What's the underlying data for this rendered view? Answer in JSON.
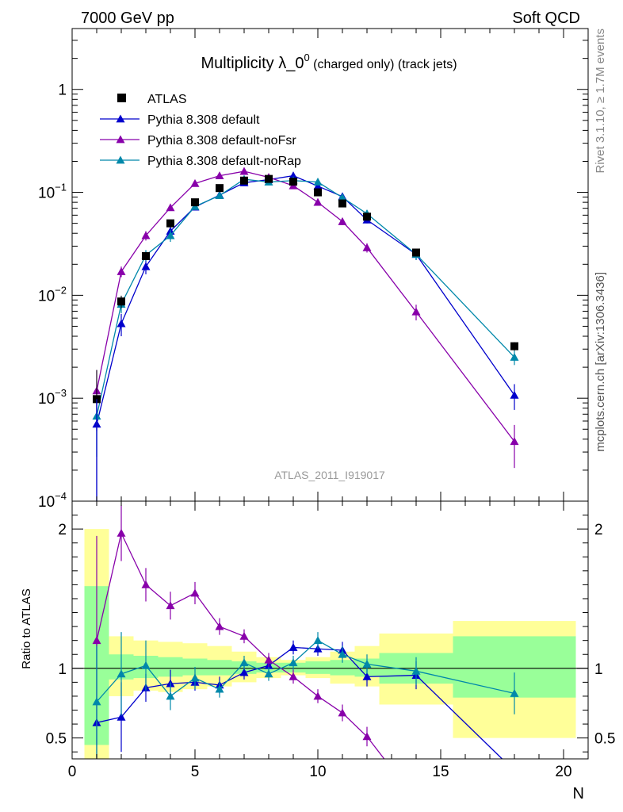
{
  "header": {
    "left": "7000 GeV pp",
    "right": "Soft QCD"
  },
  "side": {
    "rivet": "Rivet 3.1.10, ≥ 1.7M events",
    "mcplots": "mcplots.cern.ch [arXiv:1306.3436]"
  },
  "chart_data": {
    "type": "line",
    "title_main": "Multiplicity λ_0",
    "title_sup": "0",
    "title_rest": " (charged only) (track jets)",
    "analysis_label": "ATLAS_2011_I919017",
    "xlabel": "N",
    "ylabel": "",
    "ratio_ylabel": "Ratio to ATLAS",
    "xlim": [
      0,
      21
    ],
    "ylim": [
      0.0001,
      3.9
    ],
    "yscale": "log",
    "ratio_ylim": [
      0.35,
      2.2
    ],
    "x_ticks": [
      "0",
      "5",
      "10",
      "15",
      "20"
    ],
    "y_ticks": [
      {
        "v": 0.0001,
        "base": "10",
        "exp": "−4"
      },
      {
        "v": 0.001,
        "base": "10",
        "exp": "−3"
      },
      {
        "v": 0.01,
        "base": "10",
        "exp": "−2"
      },
      {
        "v": 0.1,
        "base": "10",
        "exp": "−1"
      },
      {
        "v": 1,
        "base": "1",
        "exp": ""
      }
    ],
    "ratio_y_ticks": [
      {
        "v": 0.5,
        "label": "0.5"
      },
      {
        "v": 1,
        "label": "1"
      },
      {
        "v": 2,
        "label": "2"
      }
    ],
    "data": {
      "name": "ATLAS",
      "color": "#000000",
      "x": [
        1,
        2,
        3,
        4,
        5,
        6,
        7,
        8,
        9,
        10,
        11,
        12,
        14,
        18
      ],
      "y": [
        0.00098,
        0.0087,
        0.024,
        0.05,
        0.08,
        0.11,
        0.13,
        0.135,
        0.127,
        0.1,
        0.078,
        0.058,
        0.026,
        0.0032
      ],
      "yerr": [
        0.0009,
        0.0012,
        0.002,
        0.004,
        0.004,
        0.005,
        0.006,
        0.006,
        0.006,
        0.005,
        0.004,
        0.004,
        0.002,
        0.0003
      ]
    },
    "series": [
      {
        "name": "Pythia 8.308 default",
        "color": "#0000cc",
        "x": [
          1,
          2,
          3,
          4,
          5,
          6,
          7,
          8,
          9,
          10,
          11,
          12,
          14,
          18
        ],
        "y": [
          0.00056,
          0.0053,
          0.019,
          0.042,
          0.072,
          0.094,
          0.124,
          0.133,
          0.145,
          0.115,
          0.091,
          0.054,
          0.025,
          0.00107
        ],
        "yerr": [
          0.0005,
          0.0013,
          0.003,
          0.004,
          0.004,
          0.005,
          0.005,
          0.006,
          0.006,
          0.006,
          0.005,
          0.004,
          0.003,
          0.0003
        ]
      },
      {
        "name": "Pythia 8.308 default-noFsr",
        "color": "#8800aa",
        "x": [
          1,
          2,
          3,
          4,
          5,
          6,
          7,
          8,
          9,
          10,
          11,
          12,
          14,
          18
        ],
        "y": [
          0.00118,
          0.017,
          0.038,
          0.071,
          0.122,
          0.145,
          0.16,
          0.14,
          0.116,
          0.08,
          0.052,
          0.029,
          0.0069,
          0.00038
        ],
        "yerr": [
          0.0007,
          0.002,
          0.004,
          0.005,
          0.006,
          0.006,
          0.007,
          0.006,
          0.006,
          0.005,
          0.004,
          0.003,
          0.0012,
          0.00017
        ]
      },
      {
        "name": "Pythia 8.308 default-noRap",
        "color": "#0088aa",
        "x": [
          1,
          2,
          3,
          4,
          5,
          6,
          7,
          8,
          9,
          10,
          11,
          12,
          14,
          18
        ],
        "y": [
          0.00067,
          0.0082,
          0.0245,
          0.038,
          0.073,
          0.093,
          0.134,
          0.126,
          0.13,
          0.126,
          0.089,
          0.062,
          0.025,
          0.0025
        ],
        "yerr": [
          0.0004,
          0.0015,
          0.003,
          0.005,
          0.005,
          0.006,
          0.006,
          0.006,
          0.006,
          0.006,
          0.005,
          0.005,
          0.003,
          0.0004
        ]
      }
    ],
    "ratio_bands": {
      "edges": [
        0.5,
        1.5,
        2.5,
        3.5,
        4.5,
        5.5,
        6.5,
        7.5,
        8.5,
        9.5,
        10.5,
        11.5,
        12.5,
        15.5,
        20.5
      ],
      "green_low": [
        0.45,
        0.92,
        0.93,
        0.94,
        0.95,
        0.95,
        0.96,
        0.97,
        0.97,
        0.96,
        0.95,
        0.94,
        0.89,
        0.79
      ],
      "green_high": [
        1.59,
        1.1,
        1.09,
        1.08,
        1.07,
        1.06,
        1.05,
        1.04,
        1.04,
        1.05,
        1.06,
        1.07,
        1.11,
        1.23
      ],
      "yellow_low": [
        0.35,
        0.8,
        0.84,
        0.83,
        0.85,
        0.87,
        0.9,
        0.93,
        0.95,
        0.93,
        0.89,
        0.87,
        0.74,
        0.5
      ],
      "yellow_high": [
        2.0,
        1.23,
        1.2,
        1.19,
        1.18,
        1.16,
        1.12,
        1.08,
        1.06,
        1.08,
        1.12,
        1.16,
        1.25,
        1.34
      ],
      "green_color": "#99ff99",
      "yellow_color": "#ffff99"
    },
    "ratios": [
      {
        "series": "Pythia 8.308 default",
        "color": "#0000cc",
        "x": [
          1,
          2,
          3,
          4,
          5,
          6,
          7,
          8,
          9,
          10,
          11,
          12,
          14,
          17.5
        ],
        "y": [
          0.61,
          0.65,
          0.86,
          0.89,
          0.9,
          0.88,
          0.97,
          1.02,
          1.15,
          1.14,
          1.13,
          0.94,
          0.95,
          0.35
        ],
        "yerr": [
          0.6,
          0.25,
          0.1,
          0.1,
          0.06,
          0.06,
          0.05,
          0.05,
          0.05,
          0.05,
          0.06,
          0.07,
          0.1,
          0
        ]
      },
      {
        "series": "Pythia 8.308 default-noFsr",
        "color": "#8800aa",
        "x": [
          1,
          2,
          3,
          4,
          5,
          6,
          7,
          8,
          9,
          10,
          11,
          12,
          12.7
        ],
        "y": [
          1.2,
          1.97,
          1.6,
          1.45,
          1.54,
          1.3,
          1.23,
          1.06,
          0.94,
          0.8,
          0.68,
          0.51,
          0.35
        ],
        "yerr": [
          0.75,
          0.2,
          0.12,
          0.1,
          0.08,
          0.06,
          0.05,
          0.05,
          0.05,
          0.05,
          0.06,
          0.07,
          0
        ]
      },
      {
        "series": "Pythia 8.308 default-noRap",
        "color": "#0088aa",
        "x": [
          1,
          2,
          3,
          4,
          5,
          6,
          7,
          8,
          9,
          10,
          11,
          12,
          14,
          18
        ],
        "y": [
          0.76,
          0.96,
          1.02,
          0.8,
          0.93,
          0.85,
          1.04,
          0.96,
          1.04,
          1.2,
          1.1,
          1.03,
          0.98,
          0.82
        ],
        "yerr": [
          0.4,
          0.3,
          0.18,
          0.1,
          0.08,
          0.06,
          0.05,
          0.05,
          0.05,
          0.06,
          0.06,
          0.07,
          0.1,
          0.15
        ]
      }
    ],
    "legend_position": "top-left"
  }
}
